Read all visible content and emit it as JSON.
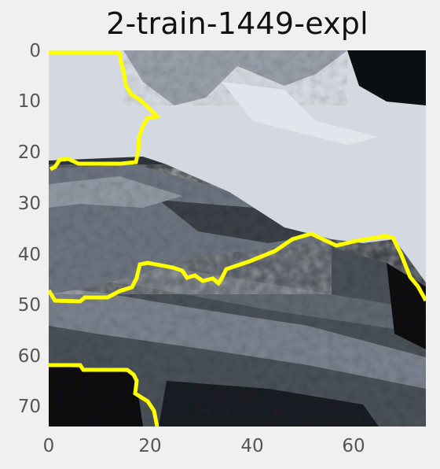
{
  "title": "2-train-1449-expl",
  "colors": {
    "background": "#f0f0f0",
    "boundary": "#ffff00",
    "sky": "#d4d9e1",
    "dark": "#0b0f13",
    "mid": "#596069",
    "light_gray": "#8a919c"
  },
  "axes": {
    "y_ticks": [
      "0",
      "10",
      "20",
      "30",
      "40",
      "50",
      "60",
      "70"
    ],
    "x_ticks": [
      "0",
      "20",
      "40",
      "60"
    ],
    "x_range": [
      0,
      74
    ],
    "y_range": [
      0,
      74
    ],
    "grid": false
  }
}
